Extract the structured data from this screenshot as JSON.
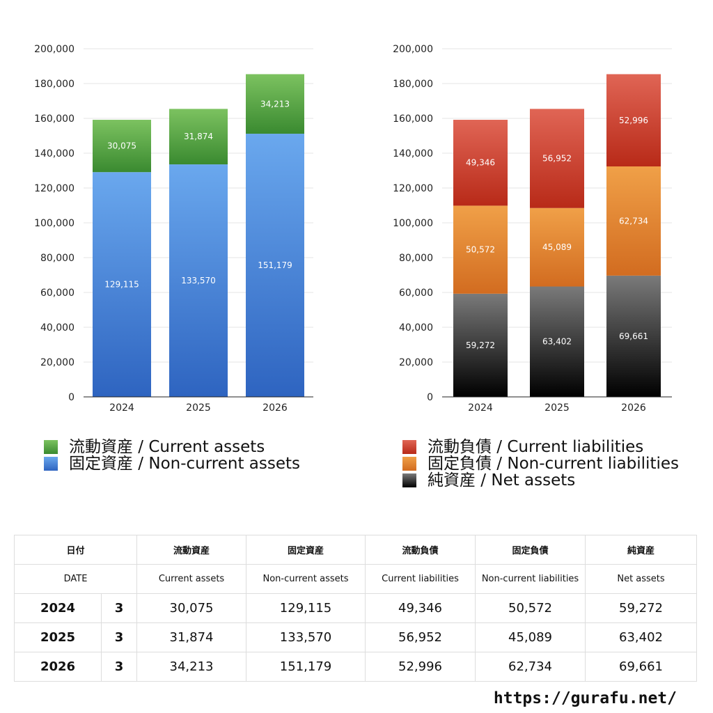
{
  "chart_data": [
    {
      "type": "bar",
      "stacked": true,
      "categories": [
        "2024",
        "2025",
        "2026"
      ],
      "ylim": [
        0,
        200000
      ],
      "yticks": [
        "0",
        "20,000",
        "40,000",
        "60,000",
        "80,000",
        "100,000",
        "120,000",
        "140,000",
        "160,000",
        "180,000",
        "200,000"
      ],
      "series": [
        {
          "name": "固定資産 / Non-current assets",
          "values": [
            129115,
            133570,
            151179
          ],
          "labels": [
            "129,115",
            "133,570",
            "151,179"
          ],
          "color": "#4a86dc"
        },
        {
          "name": "流動資産 / Current assets",
          "values": [
            30075,
            31874,
            34213
          ],
          "labels": [
            "30,075",
            "31,874",
            "34,213"
          ],
          "color": "#5aa845"
        }
      ],
      "legend": [
        "流動資産 / Current assets",
        "固定資産 / Non-current assets"
      ]
    },
    {
      "type": "bar",
      "stacked": true,
      "categories": [
        "2024",
        "2025",
        "2026"
      ],
      "ylim": [
        0,
        200000
      ],
      "yticks": [
        "0",
        "20,000",
        "40,000",
        "60,000",
        "80,000",
        "100,000",
        "120,000",
        "140,000",
        "160,000",
        "180,000",
        "200,000"
      ],
      "series": [
        {
          "name": "純資産 / Net assets",
          "values": [
            59272,
            63402,
            69661
          ],
          "labels": [
            "59,272",
            "63,402",
            "69,661"
          ],
          "color": "#333333"
        },
        {
          "name": "固定負債 / Non-current liabilities",
          "values": [
            50572,
            45089,
            62734
          ],
          "labels": [
            "50,572",
            "45,089",
            "62,734"
          ],
          "color": "#e08a35"
        },
        {
          "name": "流動負債 / Current liabilities",
          "values": [
            49346,
            56952,
            52996
          ],
          "labels": [
            "49,346",
            "56,952",
            "52,996"
          ],
          "color": "#cc4433"
        }
      ],
      "legend": [
        "流動負債 / Current liabilities",
        "固定負債 / Non-current liabilities",
        "純資産 / Net assets"
      ]
    }
  ],
  "table": {
    "header_jp": {
      "date": "日付",
      "ca": "流動資産",
      "nca": "固定資産",
      "cl": "流動負債",
      "ncl": "固定負債",
      "na": "純資産"
    },
    "header_en": {
      "date": "DATE",
      "ca": "Current assets",
      "nca": "Non-current assets",
      "cl": "Current liabilities",
      "ncl": "Non-current liabilities",
      "na": "Net assets"
    },
    "rows": [
      {
        "year": "2024",
        "month": "3",
        "ca": "30,075",
        "nca": "129,115",
        "cl": "49,346",
        "ncl": "50,572",
        "na": "59,272"
      },
      {
        "year": "2025",
        "month": "3",
        "ca": "31,874",
        "nca": "133,570",
        "cl": "56,952",
        "ncl": "45,089",
        "na": "63,402"
      },
      {
        "year": "2026",
        "month": "3",
        "ca": "34,213",
        "nca": "151,179",
        "cl": "52,996",
        "ncl": "62,734",
        "na": "69,661"
      }
    ]
  },
  "footer": {
    "url": "https://gurafu.net/"
  }
}
